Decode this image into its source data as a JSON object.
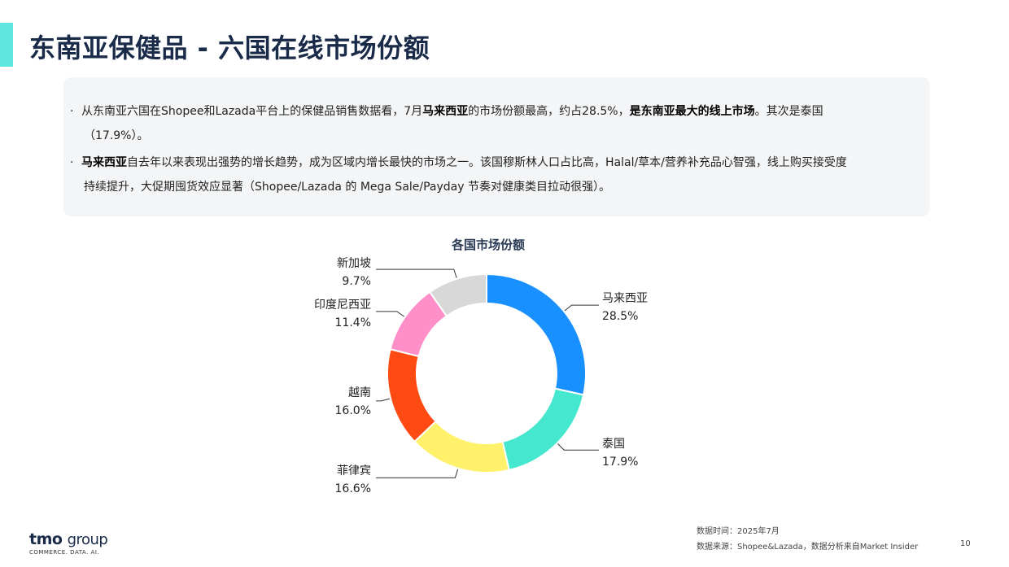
{
  "header": {
    "title": "东南亚保健品 - 六国在线市场份额"
  },
  "summary": {
    "bullet_marker": "·",
    "bullet1": {
      "p1": "从东南亚六国在Shopee和Lazada平台上的保健品销售数据看，7月",
      "b1": "马来西亚",
      "p2": "的市场份额最高，约占28.5%，",
      "b2": "是东南亚最大的线上市场",
      "p3": "。其次是泰国",
      "line2": "（17.9%）。"
    },
    "bullet2": {
      "b1": "马来西亚",
      "p1": "自去年以来表现出强势的增长趋势，成为区域内增长最快的市场之一。该国穆斯林人口占比高，Halal/草本/营养补充品心智强，线上购买接受度",
      "line2": "持续提升，大促期囤货效应显著（Shopee/Lazada 的 Mega Sale/Payday 节奏对健康类目拉动很强）。"
    }
  },
  "chart_data": {
    "type": "pie",
    "title": "各国市场份额",
    "series": [
      {
        "name": "马来西亚",
        "value": 28.5,
        "label": "28.5%",
        "color": "#1890ff"
      },
      {
        "name": "泰国",
        "value": 17.9,
        "label": "17.9%",
        "color": "#45e8cf"
      },
      {
        "name": "菲律宾",
        "value": 16.6,
        "label": "16.6%",
        "color": "#fff16a"
      },
      {
        "name": "越南",
        "value": 16.0,
        "label": "16.0%",
        "color": "#ff4a14"
      },
      {
        "name": "印度尼西亚",
        "value": 11.4,
        "label": "11.4%",
        "color": "#ff8fc8"
      },
      {
        "name": "新加坡",
        "value": 9.7,
        "label": "9.7%",
        "color": "#d8d8d8"
      }
    ]
  },
  "footer": {
    "logo_main": "tmo",
    "logo_group": "group",
    "logo_sub": "COMMERCE. DATA. AI.",
    "data_time": "数据时间：2025年7月",
    "data_source": "数据来源：Shopee&Lazada，数据分析来自Market Insider",
    "page_number": "10"
  }
}
